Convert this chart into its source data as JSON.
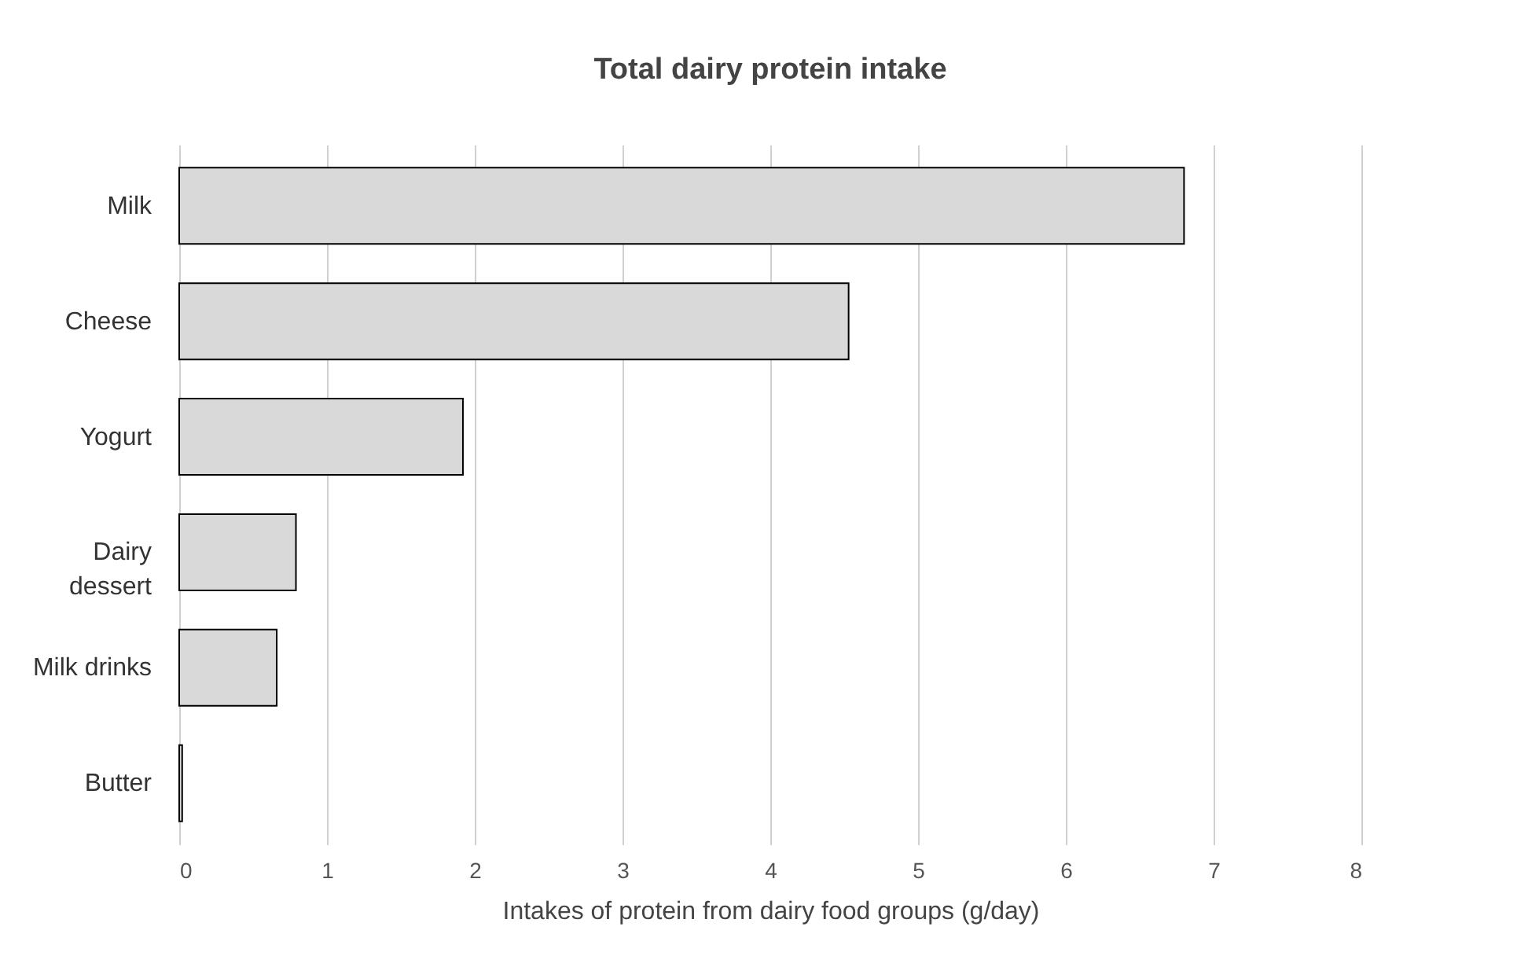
{
  "chart_data": {
    "type": "bar",
    "orientation": "horizontal",
    "title": "Total dairy protein intake",
    "xlabel": "Intakes of protein from dairy food groups (g/day)",
    "categories": [
      "Milk",
      "Cheese",
      "Yogurt",
      "Dairy\ndessert",
      "Milk drinks",
      "Butter"
    ],
    "values": [
      6.8,
      4.53,
      1.92,
      0.79,
      0.66,
      0.02
    ],
    "color": "#d9d9d9",
    "xlim": [
      0,
      8
    ],
    "xticks": [
      0,
      1,
      2,
      3,
      4,
      5,
      6,
      7,
      8
    ],
    "grid": "x"
  }
}
